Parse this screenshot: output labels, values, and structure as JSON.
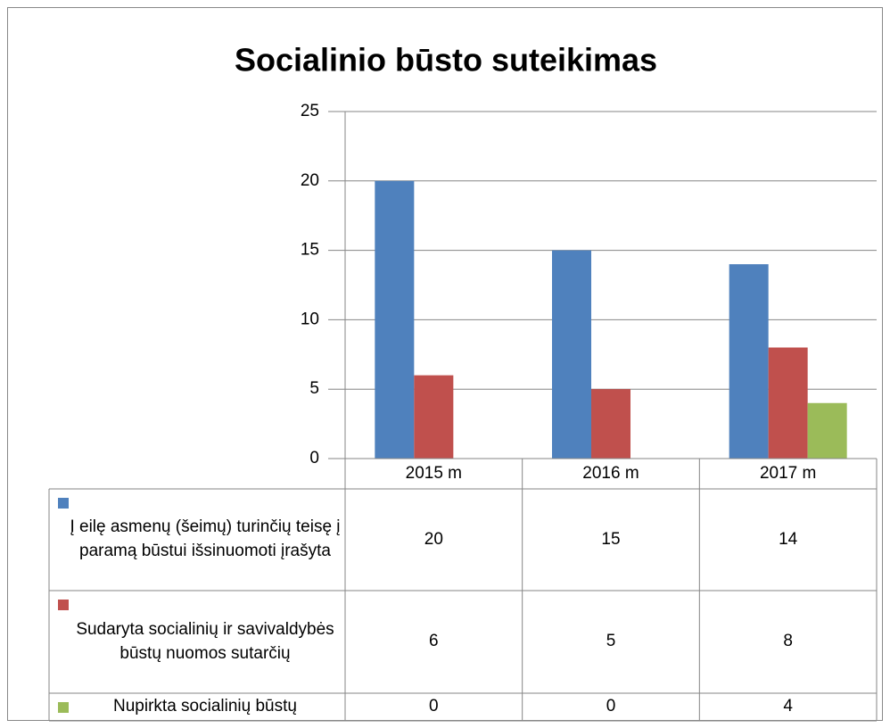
{
  "chart_data": {
    "type": "bar",
    "title": "Socialinio būsto suteikimas",
    "categories": [
      "2015 m",
      "2016 m",
      "2017 m"
    ],
    "series": [
      {
        "name": "Į eilę asmenų (šeimų) turinčių teisę į paramą būstui išsinuomoti įrašyta",
        "color": "#4f81bd",
        "values": [
          20,
          15,
          14
        ]
      },
      {
        "name": "Sudaryta socialinių ir savivaldybės būstų nuomos sutarčių",
        "color": "#c0504d",
        "values": [
          6,
          5,
          8
        ]
      },
      {
        "name": "Nupirkta socialinių būstų",
        "color": "#9bbb59",
        "values": [
          0,
          0,
          4
        ]
      }
    ],
    "ylim": [
      0,
      25
    ],
    "yticks": [
      0,
      5,
      10,
      15,
      20,
      25
    ],
    "grid": true,
    "data_table": true
  }
}
